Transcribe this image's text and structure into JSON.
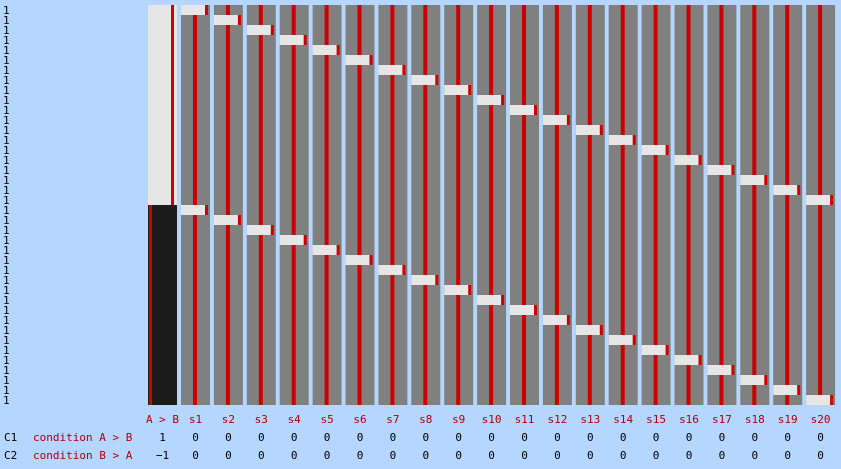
{
  "title": "",
  "colors": {
    "background": "#b4d6ff",
    "column_gray": "#808080",
    "light_block": "#e6e6e6",
    "dark_block": "#1c1c1c",
    "red_line": "#cc0000",
    "label_red": "#b0000a",
    "text_black": "#000000"
  },
  "columns": [
    {
      "name": "A > B",
      "kind": "effect"
    },
    {
      "name": "s1",
      "kind": "session"
    },
    {
      "name": "s2",
      "kind": "session"
    },
    {
      "name": "s3",
      "kind": "session"
    },
    {
      "name": "s4",
      "kind": "session"
    },
    {
      "name": "s5",
      "kind": "session"
    },
    {
      "name": "s6",
      "kind": "session"
    },
    {
      "name": "s7",
      "kind": "session"
    },
    {
      "name": "s8",
      "kind": "session"
    },
    {
      "name": "s9",
      "kind": "session"
    },
    {
      "name": "s10",
      "kind": "session"
    },
    {
      "name": "s11",
      "kind": "session"
    },
    {
      "name": "s12",
      "kind": "session"
    },
    {
      "name": "s13",
      "kind": "session"
    },
    {
      "name": "s14",
      "kind": "session"
    },
    {
      "name": "s15",
      "kind": "session"
    },
    {
      "name": "s16",
      "kind": "session"
    },
    {
      "name": "s17",
      "kind": "session"
    },
    {
      "name": "s18",
      "kind": "session"
    },
    {
      "name": "s19",
      "kind": "session"
    },
    {
      "name": "s20",
      "kind": "session"
    }
  ],
  "contrasts": [
    {
      "id": "C1",
      "name": "condition A > B",
      "weights": [
        "1",
        "0",
        "0",
        "0",
        "0",
        "0",
        "0",
        "0",
        "0",
        "0",
        "0",
        "0",
        "0",
        "0",
        "0",
        "0",
        "0",
        "0",
        "0",
        "0",
        "0"
      ]
    },
    {
      "id": "C2",
      "name": "condition B > A",
      "weights": [
        "−1",
        "0",
        "0",
        "0",
        "0",
        "0",
        "0",
        "0",
        "0",
        "0",
        "0",
        "0",
        "0",
        "0",
        "0",
        "0",
        "0",
        "0",
        "0",
        "0",
        "0"
      ]
    }
  ],
  "row_tick": "1",
  "row_tick_count": 40
}
